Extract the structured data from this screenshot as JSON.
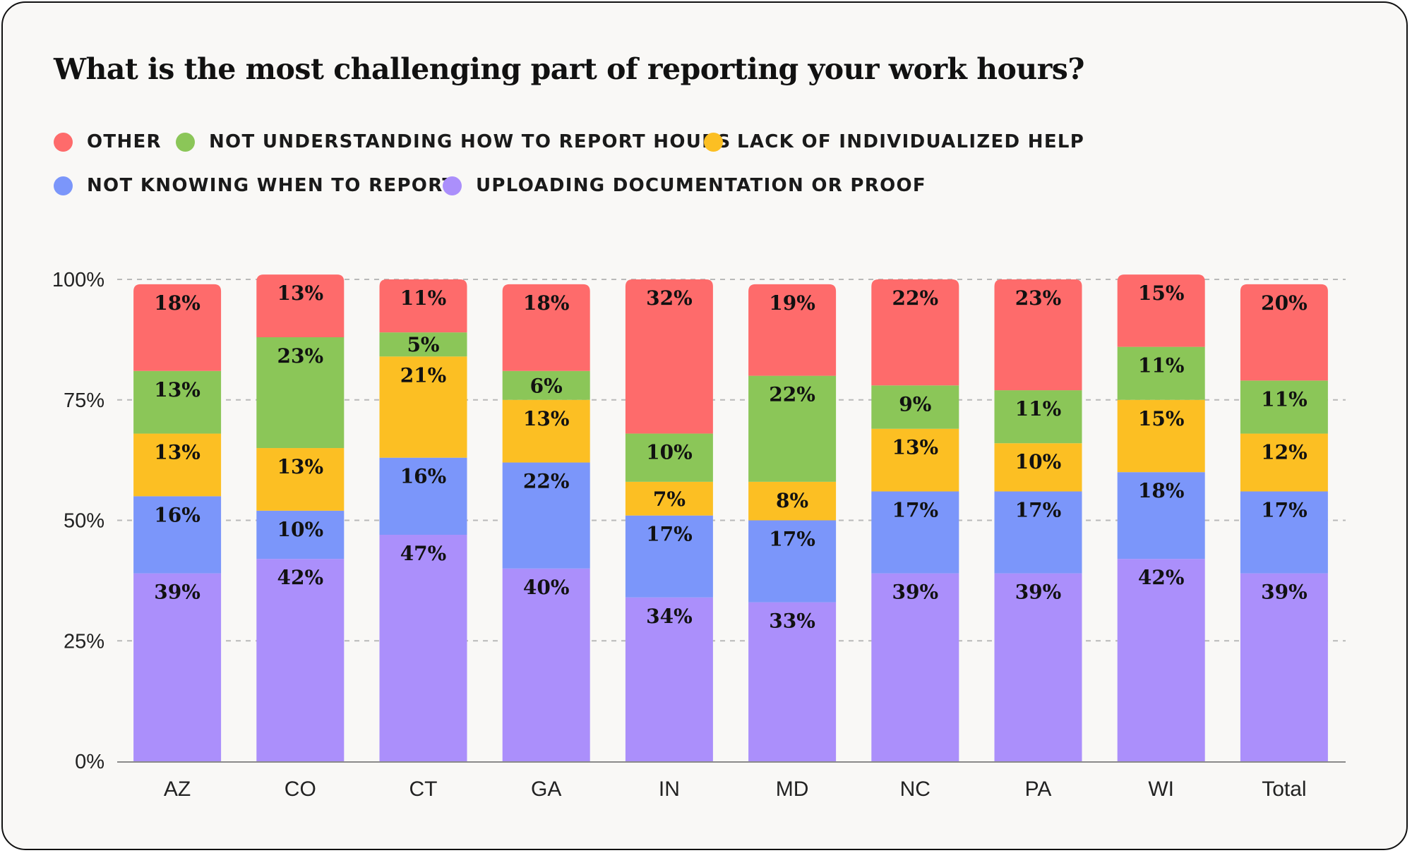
{
  "chart_data": {
    "type": "bar",
    "stacked": true,
    "title": "What is the most challenging part of reporting your work hours?",
    "xlabel": "",
    "ylabel": "",
    "ylim": [
      0,
      100
    ],
    "y_ticks": [
      "0%",
      "25%",
      "50%",
      "75%",
      "100%"
    ],
    "grid": "horizontal dashed",
    "legend_position": "top-left",
    "categories": [
      "AZ",
      "CO",
      "CT",
      "GA",
      "IN",
      "MD",
      "NC",
      "PA",
      "WI",
      "Total"
    ],
    "series": [
      {
        "name": "UPLOADING DOCUMENTATION OR PROOF",
        "color": "#ab8ffb",
        "values": [
          39,
          42,
          47,
          40,
          34,
          33,
          39,
          39,
          42,
          39
        ]
      },
      {
        "name": "NOT KNOWING WHEN TO REPORT",
        "color": "#7b96fa",
        "values": [
          16,
          10,
          16,
          22,
          17,
          17,
          17,
          17,
          18,
          17
        ]
      },
      {
        "name": "LACK OF INDIVIDUALIZED HELP",
        "color": "#fcbf23",
        "values": [
          13,
          13,
          21,
          13,
          7,
          8,
          13,
          10,
          15,
          12
        ]
      },
      {
        "name": "NOT UNDERSTANDING HOW TO REPORT HOURS",
        "color": "#8bc658",
        "values": [
          13,
          23,
          5,
          6,
          10,
          22,
          9,
          11,
          11,
          11
        ]
      },
      {
        "name": "OTHER",
        "color": "#fe6b6b",
        "values": [
          18,
          13,
          11,
          18,
          32,
          19,
          22,
          23,
          15,
          20
        ]
      }
    ],
    "legend_order": [
      "OTHER",
      "NOT UNDERSTANDING HOW TO REPORT HOURS",
      "LACK OF INDIVIDUALIZED HELP",
      "NOT KNOWING WHEN TO REPORT",
      "UPLOADING DOCUMENTATION OR PROOF"
    ]
  }
}
